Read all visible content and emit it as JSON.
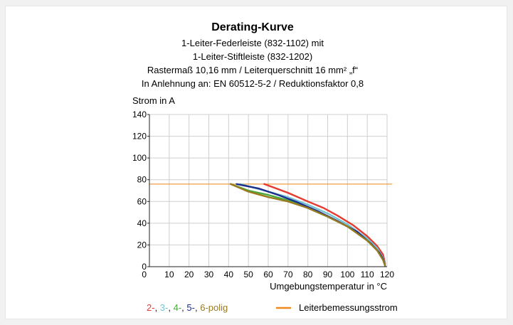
{
  "chart_data": {
    "type": "line",
    "title": "Derating-Kurve",
    "subtitle_lines": [
      "1-Leiter-Federleiste (832-1102) mit",
      "1-Leiter-Stiftleiste (832-1202)",
      "Rastermaß 10,16 mm / Leiterquerschnitt 16 mm² „f“",
      "In Anlehnung an: EN 60512-5-2 / Reduktionsfaktor 0,8"
    ],
    "ylabel": "Strom in A",
    "xlabel": "Umgebungstemperatur in °C",
    "xlim": [
      0,
      120
    ],
    "ylim": [
      0,
      140
    ],
    "x_ticks": [
      10,
      20,
      30,
      40,
      50,
      60,
      70,
      80,
      90,
      100,
      110,
      120
    ],
    "y_ticks": [
      0,
      20,
      40,
      60,
      80,
      100,
      120,
      140
    ],
    "grid": true,
    "series": [
      {
        "name": "2-",
        "color": "#e53a2f",
        "points": [
          [
            58,
            76
          ],
          [
            70,
            68
          ],
          [
            80,
            60
          ],
          [
            88,
            54
          ],
          [
            95,
            47
          ],
          [
            103,
            38
          ],
          [
            110,
            28
          ],
          [
            115,
            19
          ],
          [
            118,
            11
          ],
          [
            119,
            3
          ]
        ]
      },
      {
        "name": "3-",
        "color": "#76c4d2",
        "points": [
          [
            46,
            76
          ],
          [
            60,
            69
          ],
          [
            70,
            64
          ],
          [
            80,
            57
          ],
          [
            90,
            49
          ],
          [
            100,
            39
          ],
          [
            110,
            26
          ],
          [
            115,
            17
          ],
          [
            118,
            8
          ],
          [
            119,
            2
          ]
        ]
      },
      {
        "name": "4-",
        "color": "#4aaa3e",
        "points": [
          [
            41,
            76
          ],
          [
            50,
            70
          ],
          [
            60,
            66
          ],
          [
            70,
            61
          ],
          [
            80,
            54
          ],
          [
            90,
            46
          ],
          [
            100,
            37
          ],
          [
            110,
            24
          ],
          [
            115,
            15
          ],
          [
            118,
            7
          ],
          [
            119,
            1
          ]
        ]
      },
      {
        "name": "5-",
        "color": "#1c2f8c",
        "points": [
          [
            44,
            76
          ],
          [
            55,
            72
          ],
          [
            65,
            66
          ],
          [
            75,
            59
          ],
          [
            85,
            51
          ],
          [
            95,
            42
          ],
          [
            105,
            32
          ],
          [
            112,
            21
          ],
          [
            116,
            13
          ],
          [
            118,
            7
          ],
          [
            119,
            1
          ]
        ]
      },
      {
        "name": "6-",
        "color": "#9a7a1e",
        "points": [
          [
            41,
            76
          ],
          [
            50,
            69
          ],
          [
            60,
            64
          ],
          [
            70,
            60
          ],
          [
            80,
            54
          ],
          [
            90,
            46
          ],
          [
            100,
            37
          ],
          [
            110,
            24
          ],
          [
            115,
            15
          ],
          [
            118,
            6
          ],
          [
            119,
            1
          ]
        ]
      }
    ],
    "reference_line": {
      "name": "Leiterbemessungsstrom",
      "color": "#f08a1c",
      "y": 76
    },
    "legend": {
      "placement": "bottom",
      "series_suffix": "polig",
      "separator": ", ",
      "reference_label": "Leiterbemessungsstrom"
    }
  }
}
